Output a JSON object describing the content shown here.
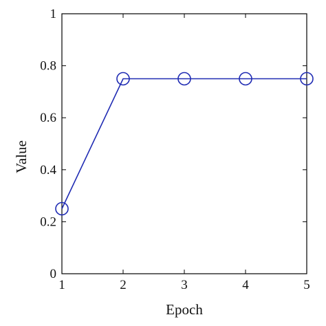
{
  "chart_data": {
    "type": "line",
    "title": "",
    "xlabel": "Epoch",
    "ylabel": "Value",
    "x": [
      1,
      2,
      3,
      4,
      5
    ],
    "series": [
      {
        "values": [
          0.25,
          0.75,
          0.75,
          0.75,
          0.75
        ],
        "color": "#1f2bb3",
        "marker": "circle-open"
      }
    ],
    "xlim": [
      1,
      5
    ],
    "ylim": [
      0,
      1
    ],
    "xticks": [
      1,
      2,
      3,
      4,
      5
    ],
    "yticks": [
      0,
      0.2,
      0.4,
      0.6,
      0.8,
      1
    ],
    "xtick_labels": [
      "1",
      "2",
      "3",
      "4",
      "5"
    ],
    "ytick_labels": [
      "0",
      "0.2",
      "0.4",
      "0.6",
      "0.8",
      "1"
    ],
    "grid": false,
    "legend": "none"
  }
}
